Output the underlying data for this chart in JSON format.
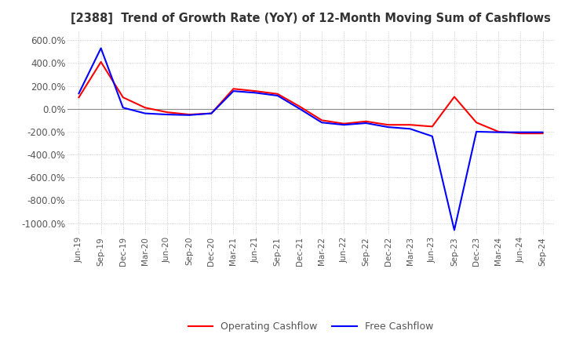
{
  "title": "[2388]  Trend of Growth Rate (YoY) of 12-Month Moving Sum of Cashflows",
  "ylim": [
    -1100,
    680
  ],
  "yticks": [
    600,
    400,
    200,
    0,
    -200,
    -400,
    -600,
    -800,
    -1000
  ],
  "ytick_labels": [
    "600.0%",
    "400.0%",
    "200.0%",
    "0.0%",
    "-200.0%",
    "-400.0%",
    "-600.0%",
    "-800.0%",
    "-1000.0%"
  ],
  "background_color": "#ffffff",
  "grid_color": "#bbbbbb",
  "operating_color": "#ff0000",
  "free_color": "#0000ff",
  "legend_labels": [
    "Operating Cashflow",
    "Free Cashflow"
  ],
  "x_labels": [
    "Jun-19",
    "Sep-19",
    "Dec-19",
    "Mar-20",
    "Jun-20",
    "Sep-20",
    "Dec-20",
    "Mar-21",
    "Jun-21",
    "Sep-21",
    "Dec-21",
    "Mar-22",
    "Jun-22",
    "Sep-22",
    "Dec-22",
    "Mar-23",
    "Jun-23",
    "Sep-23",
    "Dec-23",
    "Mar-24",
    "Jun-24",
    "Sep-24"
  ],
  "operating_cashflow": [
    100,
    410,
    100,
    10,
    -30,
    -50,
    -40,
    175,
    155,
    130,
    20,
    -100,
    -130,
    -110,
    -140,
    -140,
    -155,
    105,
    -120,
    -200,
    -215,
    -215
  ],
  "free_cashflow": [
    135,
    530,
    10,
    -40,
    -50,
    -55,
    -40,
    155,
    140,
    115,
    0,
    -120,
    -140,
    -125,
    -160,
    -175,
    -240,
    -1060,
    -200,
    -205,
    -205,
    -205
  ]
}
